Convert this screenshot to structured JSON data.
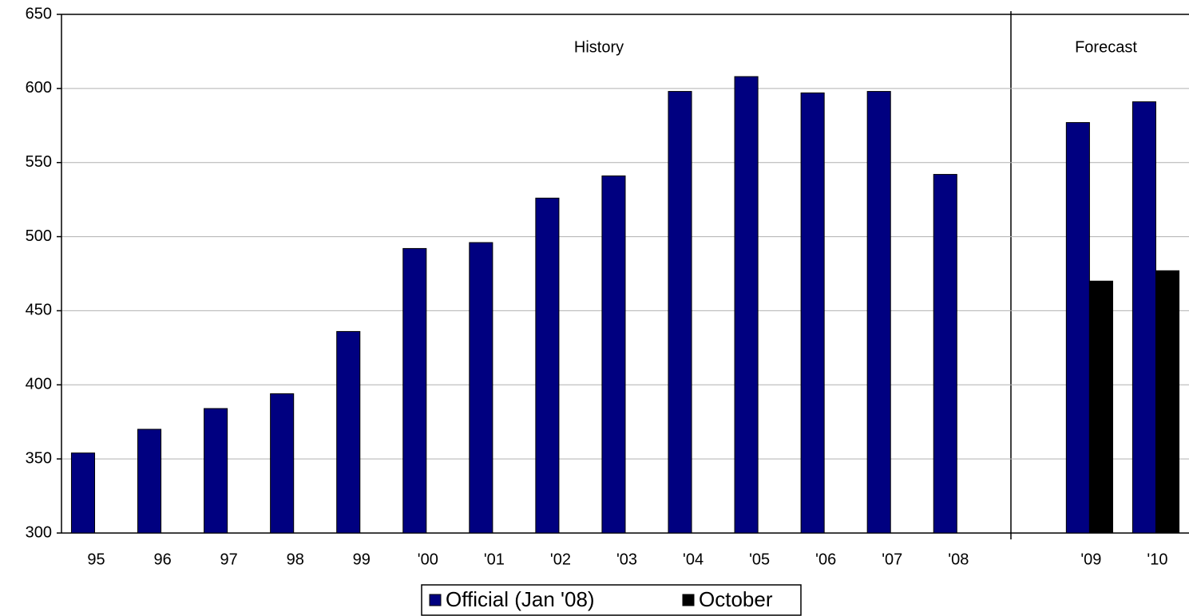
{
  "chart_data": {
    "type": "bar",
    "categories": [
      "95",
      "96",
      "97",
      "98",
      "99",
      "'00",
      "'01",
      "'02",
      "'03",
      "'04",
      "'05",
      "'06",
      "'07",
      "'08",
      null,
      "'09",
      "'10"
    ],
    "series": [
      {
        "name": "Official (Jan '08)",
        "color": "#000080",
        "values": [
          354,
          370,
          384,
          394,
          436,
          492,
          496,
          526,
          541,
          598,
          608,
          597,
          598,
          542,
          null,
          577,
          591
        ]
      },
      {
        "name": "October",
        "color": "#000000",
        "values": [
          null,
          null,
          null,
          null,
          null,
          null,
          null,
          null,
          null,
          null,
          null,
          null,
          null,
          null,
          null,
          470,
          477
        ]
      }
    ],
    "annotations": [
      "History",
      "Forecast"
    ],
    "ylim": [
      300,
      650
    ],
    "yticks": [
      300,
      350,
      400,
      450,
      500,
      550,
      600,
      650
    ],
    "grid": true,
    "legend": "bottom"
  }
}
